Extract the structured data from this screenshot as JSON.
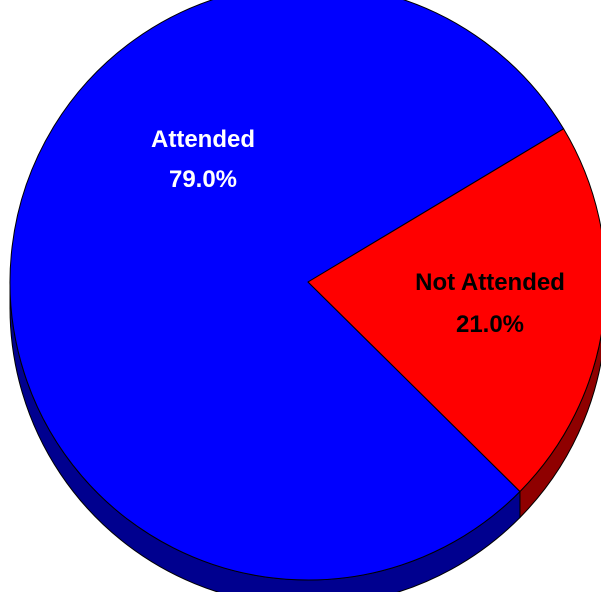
{
  "chart_data": {
    "type": "pie",
    "style": "3d",
    "title": "",
    "slices": [
      {
        "label": "Attended",
        "value": 79.0,
        "percent_label": "79.0%",
        "color": "#0000ff",
        "side_color": "#00008f",
        "text_color": "#ffffff"
      },
      {
        "label": "Not Attended",
        "value": 21.0,
        "percent_label": "21.0%",
        "color": "#ff0000",
        "side_color": "#8f0000",
        "text_color": "#000000"
      }
    ]
  }
}
